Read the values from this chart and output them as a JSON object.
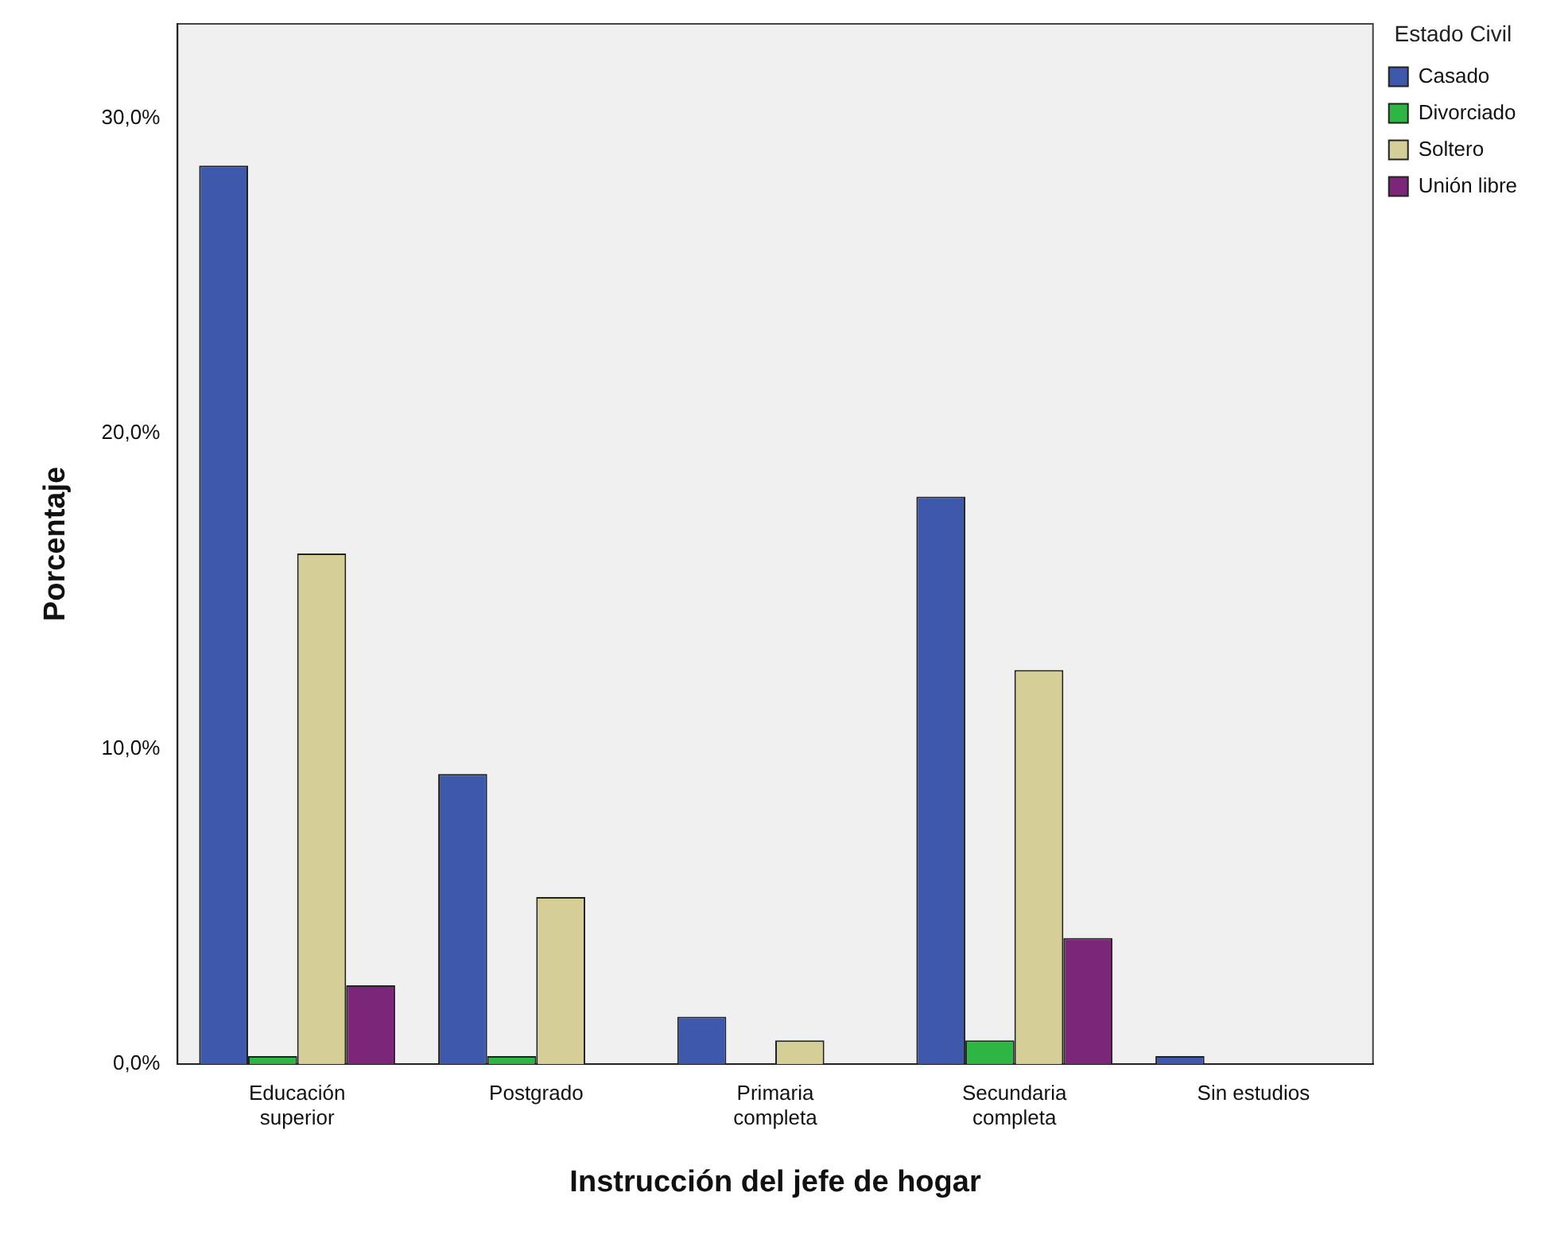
{
  "chart_data": {
    "type": "bar",
    "xlabel": "Instrucción del jefe de hogar",
    "ylabel": "Porcentaje",
    "legend_title": "Estado Civil",
    "legend": "top right",
    "grid": false,
    "categories": [
      "Educación\nsuperior",
      "Postgrado",
      "Primaria\ncompleta",
      "Secundaria\ncompleta",
      "Sin estudios"
    ],
    "ylim": [
      0,
      33
    ],
    "yticks": [
      {
        "value": 0,
        "label": "0,0%"
      },
      {
        "value": 10,
        "label": "10,0%"
      },
      {
        "value": 20,
        "label": "20,0%"
      },
      {
        "value": 30,
        "label": "30,0%"
      }
    ],
    "series": [
      {
        "name": "Casado",
        "color": "#3e58ac",
        "values": [
          28.5,
          9.2,
          1.5,
          18.0,
          0.25
        ]
      },
      {
        "name": "Divorciado",
        "color": "#2db643",
        "values": [
          0.25,
          0.25,
          0,
          0.75,
          0
        ]
      },
      {
        "name": "Soltero",
        "color": "#d5cf97",
        "values": [
          16.2,
          5.3,
          0.75,
          12.5,
          0
        ]
      },
      {
        "name": "Unión libre",
        "color": "#7c267a",
        "values": [
          2.5,
          0,
          0,
          4.0,
          0
        ]
      }
    ]
  }
}
